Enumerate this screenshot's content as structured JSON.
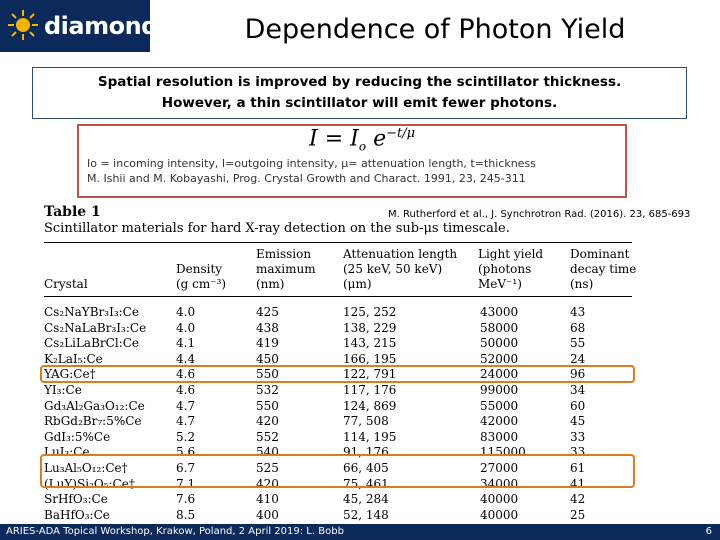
{
  "header": {
    "logo_text": "diamond",
    "title": "Dependence of Photon Yield"
  },
  "callout": {
    "line1": "Spatial resolution is improved by reducing the scintillator thickness.",
    "line2": "However, a thin scintillator will emit fewer photons."
  },
  "formula": {
    "lhs": "I",
    "eq": "=",
    "base": "I",
    "base_sub": "o",
    "exp_e": "e",
    "exponent": "−t/μ",
    "desc1": "Io = incoming intensity, I=outgoing intensity, μ= attenuation length, t=thickness",
    "desc2": "M. Ishii and M. Kobayashi, Prog. Crystal Growth and Charact. 1991, 23, 245-311"
  },
  "reference": "M. Rutherford et al., J. Synchrotron Rad. (2016). 23, 685-693",
  "table": {
    "title": "Table 1",
    "caption": "Scintillator materials for hard X-ray detection on the sub-μs timescale.",
    "headers": {
      "crystal": "Crystal",
      "density": [
        "Density",
        "(g cm⁻³)"
      ],
      "emission": [
        "Emission",
        "maximum",
        "(nm)"
      ],
      "attenuation": [
        "Attenuation length",
        "(25 keV, 50 keV)",
        "(μm)"
      ],
      "light": [
        "Light yield",
        "(photons",
        "MeV⁻¹)"
      ],
      "decay": [
        "Dominant",
        "decay time",
        "(ns)"
      ]
    },
    "rows": [
      {
        "crystal": "Cs₂NaYBr₃I₃:Ce",
        "density": "4.0",
        "emission": "425",
        "atten": "125, 252",
        "light": "43000",
        "decay": "43"
      },
      {
        "crystal": "Cs₂NaLaBr₃I₃:Ce",
        "density": "4.0",
        "emission": "438",
        "atten": "138, 229",
        "light": "58000",
        "decay": "68"
      },
      {
        "crystal": "Cs₂LiLaBrCl:Ce",
        "density": "4.1",
        "emission": "419",
        "atten": "143, 215",
        "light": "50000",
        "decay": "55"
      },
      {
        "crystal": "K₂LaI₅:Ce",
        "density": "4.4",
        "emission": "450",
        "atten": "166, 195",
        "light": "52000",
        "decay": "24"
      },
      {
        "crystal": "YAG:Ce†",
        "density": "4.6",
        "emission": "550",
        "atten": "122, 791",
        "light": "24000",
        "decay": "96"
      },
      {
        "crystal": "YI₃:Ce",
        "density": "4.6",
        "emission": "532",
        "atten": "117, 176",
        "light": "99000",
        "decay": "34"
      },
      {
        "crystal": "Gd₃Al₂Ga₃O₁₂:Ce",
        "density": "4.7",
        "emission": "550",
        "atten": "124, 869",
        "light": "55000",
        "decay": "60"
      },
      {
        "crystal": "RbGd₂Br₇:5%Ce",
        "density": "4.7",
        "emission": "420",
        "atten": "77, 508",
        "light": "42000",
        "decay": "45"
      },
      {
        "crystal": "GdI₃:5%Ce",
        "density": "5.2",
        "emission": "552",
        "atten": "114, 195",
        "light": "83000",
        "decay": "33"
      },
      {
        "crystal": "LuI₃:Ce",
        "density": "5.6",
        "emission": "540",
        "atten": "91, 176",
        "light": "115000",
        "decay": "33"
      },
      {
        "crystal": "Lu₃Al₅O₁₂:Ce†",
        "density": "6.7",
        "emission": "525",
        "atten": "66, 405",
        "light": "27000",
        "decay": "61"
      },
      {
        "crystal": "(LuY)Si₂O₅:Ce†",
        "density": "7.1",
        "emission": "420",
        "atten": "75, 461",
        "light": "34000",
        "decay": "41"
      },
      {
        "crystal": "SrHfO₃:Ce",
        "density": "7.6",
        "emission": "410",
        "atten": "45, 284",
        "light": "40000",
        "decay": "42"
      },
      {
        "crystal": "BaHfO₃:Ce",
        "density": "8.5",
        "emission": "400",
        "atten": "52, 148",
        "light": "40000",
        "decay": "25"
      }
    ]
  },
  "footer": {
    "text": "ARIES-ADA Topical Workshop, Krakow, Poland, 2 April 2019: L. Bobb",
    "page": "6"
  },
  "colors": {
    "navy": "#0b2a5b",
    "highlight": "#e07a1f",
    "formula_border": "#c0504d"
  }
}
